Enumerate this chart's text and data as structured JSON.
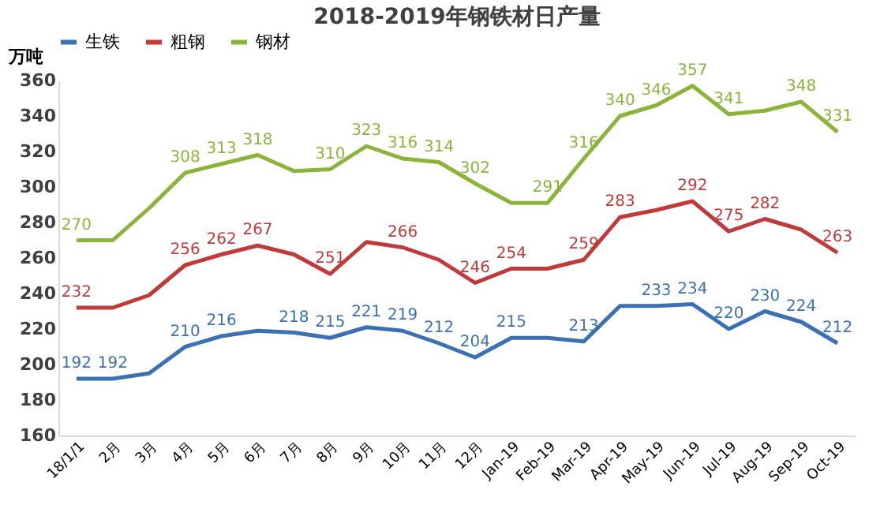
{
  "chart_data": {
    "type": "line",
    "title": "2018-2019年钢铁材日产量",
    "ylabel": "万吨",
    "categories": [
      "18/1/1",
      "2月",
      "3月",
      "4月",
      "5月",
      "6月",
      "7月",
      "8月",
      "9月",
      "10月",
      "11月",
      "12月",
      "Jan-19",
      "Feb-19",
      "Mar-19",
      "Apr-19",
      "May-19",
      "Jun-19",
      "Jul-19",
      "Aug-19",
      "Sep-19",
      "Oct-19"
    ],
    "ylim": [
      160,
      360
    ],
    "yticks": [
      160,
      180,
      200,
      220,
      240,
      260,
      280,
      300,
      320,
      340,
      360
    ],
    "grid": false,
    "legend": "top",
    "marker": "none",
    "line_style": "solid",
    "series": [
      {
        "name": "生铁",
        "color": "#3b70b3",
        "values": [
          192,
          192,
          195,
          210,
          216,
          219,
          218,
          215,
          221,
          219,
          212,
          204,
          215,
          215,
          213,
          233,
          233,
          234,
          220,
          230,
          224,
          212
        ],
        "value_labels": [
          "192",
          "192",
          null,
          "210",
          "216",
          null,
          "218",
          "215",
          "221",
          "219",
          "212",
          "204",
          "215",
          null,
          "213",
          null,
          "233",
          "234",
          "220",
          "230",
          "224",
          "212"
        ]
      },
      {
        "name": "粗钢",
        "color": "#c0393b",
        "values": [
          232,
          232,
          239,
          256,
          262,
          267,
          262,
          251,
          269,
          266,
          259,
          246,
          254,
          254,
          259,
          283,
          287,
          292,
          275,
          282,
          276,
          263
        ],
        "value_labels": [
          "232",
          null,
          null,
          "256",
          "262",
          "267",
          null,
          "251",
          null,
          "266",
          null,
          "246",
          "254",
          null,
          "259",
          "283",
          null,
          "292",
          "275",
          "282",
          null,
          "263"
        ]
      },
      {
        "name": "钢材",
        "color": "#8cb43c",
        "values": [
          270,
          270,
          288,
          308,
          313,
          318,
          309,
          310,
          323,
          316,
          314,
          302,
          291,
          291,
          316,
          340,
          346,
          357,
          341,
          343,
          348,
          331
        ],
        "value_labels": [
          "270",
          null,
          null,
          "308",
          "313",
          "318",
          null,
          "310",
          "323",
          "316",
          "314",
          "302",
          null,
          "291",
          "316",
          "340",
          "346",
          "357",
          "341",
          null,
          "348",
          "331"
        ]
      }
    ]
  }
}
